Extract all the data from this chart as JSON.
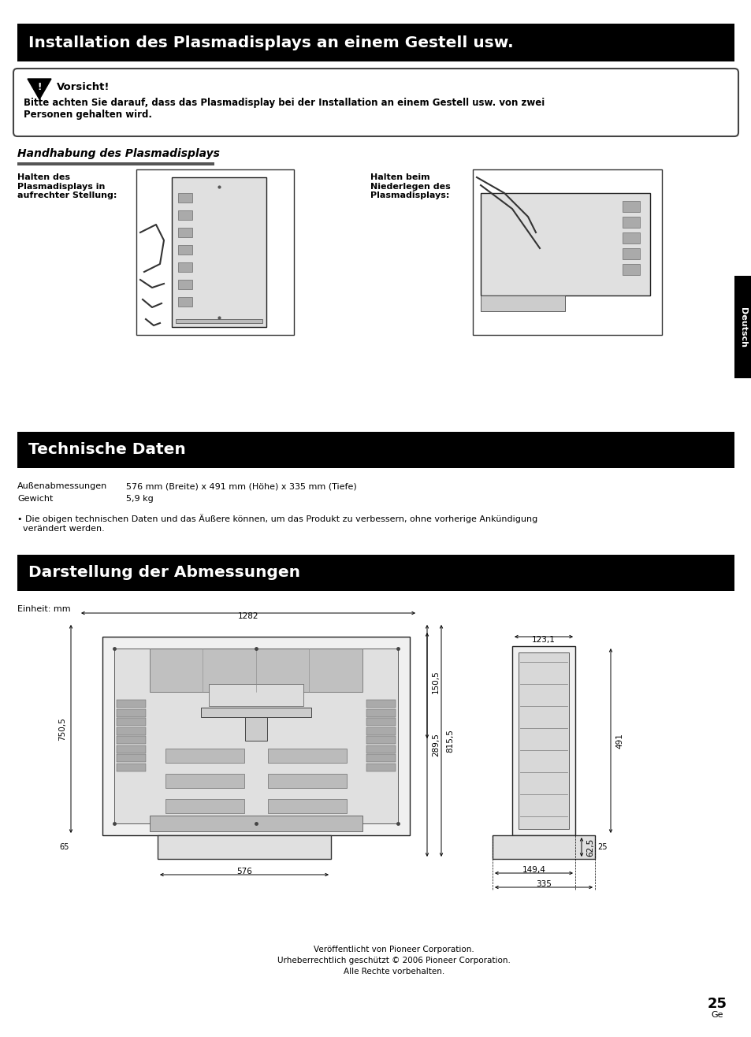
{
  "page_bg": "#ffffff",
  "header1_bg": "#000000",
  "header1_text": "Installation des Plasmadisplays an einem Gestell usw.",
  "header1_text_color": "#ffffff",
  "warning_title": "Vorsicht!",
  "warning_body_bold": "Bitte achten Sie darauf, dass das Plasmadisplay bei der Installation an einem Gestell usw. von zwei\nPersonen gehalten wird.",
  "section_handling_title": "Handhabung des Plasmadisplays",
  "label_left_title": "Halten des\nPlasmadisplays in\naufrechter Stellung:",
  "label_right_title": "Halten beim\nNiederlegen des\nPlasmadisplays:",
  "header2_text": "Technische Daten",
  "tech_line1_label": "Außenabmessungen",
  "tech_line1_value": "576 mm (Breite) x 491 mm (Höhe) x 335 mm (Tiefe)",
  "tech_line2_label": "Gewicht",
  "tech_line2_value": "5,9 kg",
  "tech_note": "• Die obigen technischen Daten und das Äußere können, um das Produkt zu verbessern, ohne vorherige Ankündigung\n  verändert werden.",
  "header3_text": "Darstellung der Abmessungen",
  "unit_label": "Einheit: mm",
  "dim_1282": "1282",
  "dim_576": "576",
  "dim_750_5": "750,5",
  "dim_65": "65",
  "dim_815_5": "815,5",
  "dim_150_5": "150,5",
  "dim_289_5": "289,5",
  "dim_123_1": "123,1",
  "dim_491": "491",
  "dim_62_5": "62,5",
  "dim_25": "25",
  "dim_149_4": "149,4",
  "dim_335": "335",
  "footer1": "Veröffentlicht von Pioneer Corporation.",
  "footer2": "Urheberrechtlich geschützt © 2006 Pioneer Corporation.",
  "footer3": "Alle Rechte vorbehalten.",
  "page_number": "25",
  "page_sub": "Ge",
  "side_label": "Deutsch"
}
